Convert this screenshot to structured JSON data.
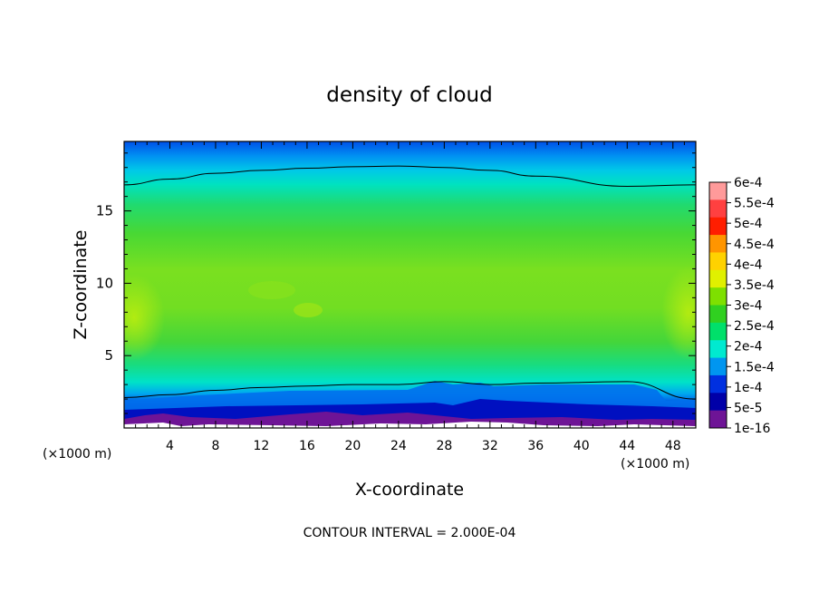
{
  "chart_data": {
    "type": "heatmap",
    "title": "density of cloud",
    "xlabel": "X-coordinate",
    "ylabel": "Z-coordinate",
    "x_unit_left": "(×1000 m)",
    "x_unit_right": "(×1000 m)",
    "xlim": [
      0,
      50
    ],
    "ylim": [
      0,
      19.8
    ],
    "x_ticks": [
      4,
      8,
      12,
      16,
      20,
      24,
      28,
      32,
      36,
      40,
      44,
      48
    ],
    "y_ticks": [
      5,
      10,
      15
    ],
    "footer": "CONTOUR INTERVAL = 2.000E-04",
    "colorbar": {
      "labels": [
        "6e-4",
        "5.5e-4",
        "5e-4",
        "4.5e-4",
        "4e-4",
        "3.5e-4",
        "3e-4",
        "2.5e-4",
        "2e-4",
        "1.5e-4",
        "1e-4",
        "5e-5",
        "1e-16"
      ],
      "colors": [
        "#ff9a9a",
        "#ff4040",
        "#ff1e00",
        "#ff9500",
        "#ffd200",
        "#e0f000",
        "#7ee000",
        "#30d020",
        "#00e06a",
        "#00ead0",
        "#0096f0",
        "#0030e0",
        "#0000a8",
        "#6e1496"
      ]
    },
    "field_description_points": {
      "z": [
        0.2,
        1.0,
        2.0,
        3.5,
        5.0,
        8.0,
        11.0,
        14.0,
        16.5,
        18.0,
        19.8
      ],
      "density": [
        1e-16,
        5e-05,
        0.00015,
        0.00022,
        0.00027,
        0.00034,
        0.00031,
        0.00027,
        0.0002,
        0.00012,
        5e-05
      ]
    },
    "contour_2e-4_upper_z": [
      16.8,
      17.2,
      17.6,
      17.8,
      17.95,
      18.05,
      18.1,
      18.0,
      17.8,
      17.4,
      16.7,
      16.8
    ],
    "contour_2e-4_upper_x": [
      0,
      4,
      8,
      12,
      16,
      20,
      24,
      28,
      32,
      36,
      44,
      50
    ],
    "contour_2e-4_lower_z": [
      2.1,
      2.3,
      2.6,
      2.8,
      2.9,
      3.0,
      3.0,
      3.2,
      3.0,
      3.1,
      3.2,
      2.0
    ],
    "contour_2e-4_lower_x": [
      0,
      4,
      8,
      12,
      16,
      20,
      24,
      28,
      32,
      36,
      44,
      50
    ]
  }
}
